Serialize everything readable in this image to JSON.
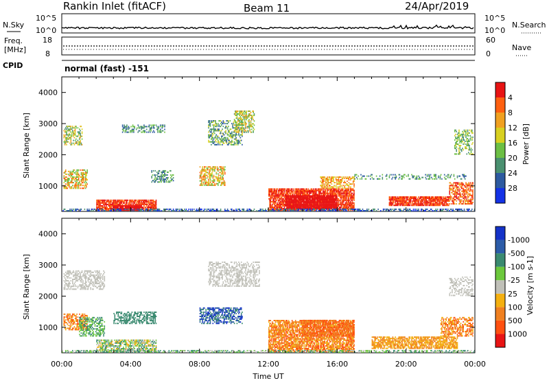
{
  "header": {
    "station": "Rankin Inlet (fitACF)",
    "beam": "Beam 11",
    "date": "24/Apr/2019"
  },
  "noise_panel": {
    "left_label": "N.Sky",
    "right_label": "N.Search",
    "left_ticks": [
      "10^5",
      "10^0"
    ],
    "right_ticks": [
      "10^5",
      "10^0"
    ]
  },
  "freq_panel": {
    "left_label_1": "Freq.",
    "left_label_2": "[MHz]",
    "right_label": "Nave",
    "left_ticks": [
      "18",
      "8"
    ],
    "right_ticks": [
      "60",
      "0"
    ]
  },
  "cpid_panel": {
    "label": "CPID",
    "value": "normal (fast) -151"
  },
  "chart_data": [
    {
      "type": "heatmap",
      "title": "",
      "xlabel": "Time UT",
      "ylabel": "Slant Range [km]",
      "x_ticks": [
        "00:00",
        "04:00",
        "08:00",
        "12:00",
        "16:00",
        "20:00",
        "00:00"
      ],
      "xlim_hours": [
        0,
        24
      ],
      "ylim": [
        180,
        4500
      ],
      "y_ticks": [
        1000,
        2000,
        3000,
        4000
      ],
      "colorbar": {
        "label": "Power [dB]",
        "ticks": [
          "4",
          "8",
          "12",
          "16",
          "20",
          "24",
          "28"
        ],
        "colors": [
          "#1432e6",
          "#2d5aa0",
          "#4a9070",
          "#6cbf44",
          "#d8d020",
          "#f0a020",
          "#ff6010",
          "#e81414"
        ]
      }
    },
    {
      "type": "heatmap",
      "title": "",
      "xlabel": "Time UT",
      "ylabel": "Slant Range [km]",
      "x_ticks": [
        "00:00",
        "04:00",
        "08:00",
        "12:00",
        "16:00",
        "20:00",
        "00:00"
      ],
      "xlim_hours": [
        0,
        24
      ],
      "ylim": [
        180,
        4500
      ],
      "y_ticks": [
        1000,
        2000,
        3000,
        4000
      ],
      "colorbar": {
        "label": "Velocity [m s-1]",
        "ticks": [
          "1000",
          "500",
          "100",
          "25",
          "-25",
          "-100",
          "-500",
          "-1000"
        ],
        "colors": [
          "#1432c8",
          "#2c5ca8",
          "#3a8a70",
          "#6cc83c",
          "#c0c0b8",
          "#f4b010",
          "#f08020",
          "#ff5010",
          "#e81414"
        ]
      }
    }
  ]
}
